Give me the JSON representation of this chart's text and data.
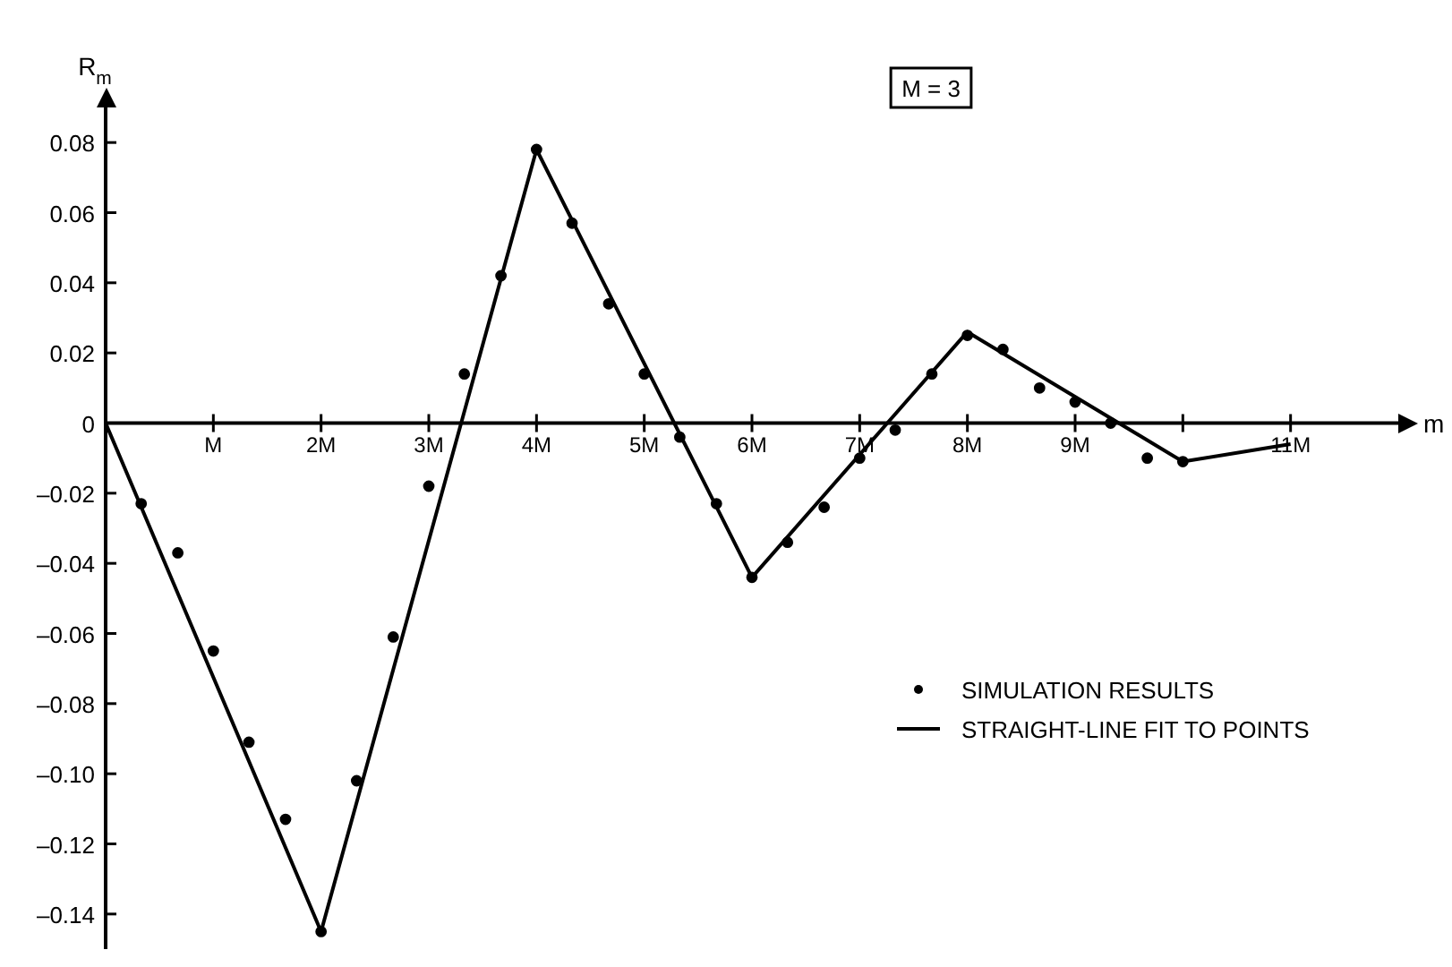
{
  "chart_data": {
    "type": "scatter",
    "xlabel": "m",
    "ylabel": "R$_{m}$",
    "annotations": [
      "M = 3"
    ],
    "xlim": [
      0,
      12
    ],
    "ylim": [
      -0.15,
      0.09
    ],
    "xticks": [
      {
        "value": 1,
        "label": "M"
      },
      {
        "value": 2,
        "label": "2M"
      },
      {
        "value": 3,
        "label": "3M"
      },
      {
        "value": 4,
        "label": "4M"
      },
      {
        "value": 5,
        "label": "5M"
      },
      {
        "value": 6,
        "label": "6M"
      },
      {
        "value": 7,
        "label": "7M"
      },
      {
        "value": 8,
        "label": "8M"
      },
      {
        "value": 9,
        "label": "9M"
      },
      {
        "value": 10,
        "label": null
      },
      {
        "value": 11,
        "label": "11M"
      }
    ],
    "yticks": [
      0.08,
      0.06,
      0.04,
      0.02,
      0,
      {
        "value": -0.02,
        "label": "–0.02"
      },
      {
        "value": -0.04,
        "label": "–0.04"
      },
      {
        "value": -0.06,
        "label": "–0.06"
      },
      {
        "value": -0.08,
        "label": "–0.08"
      },
      {
        "value": -0.1,
        "label": "–0.10"
      },
      {
        "value": -0.12,
        "label": "–0.12"
      },
      {
        "value": -0.14,
        "label": "–0.14"
      }
    ],
    "grid": false,
    "legend": "right",
    "series": [
      {
        "name": "SIMULATION RESULTS",
        "marker": "circle",
        "color": "#000000",
        "x": [
          0.33,
          0.67,
          1,
          1.33,
          1.67,
          2,
          2.33,
          2.67,
          3,
          3.33,
          3.67,
          4,
          4.33,
          4.67,
          5,
          5.33,
          5.67,
          6,
          6.33,
          6.67,
          7,
          7.33,
          7.67,
          8,
          8.33,
          8.67,
          9,
          9.33,
          9.67,
          10
        ],
        "values": [
          -0.023,
          -0.037,
          -0.065,
          -0.091,
          -0.113,
          -0.145,
          -0.102,
          -0.061,
          -0.018,
          0.014,
          0.042,
          0.078,
          0.057,
          0.034,
          0.014,
          -0.004,
          -0.023,
          -0.044,
          -0.034,
          -0.024,
          -0.01,
          -0.002,
          0.014,
          0.025,
          0.021,
          0.01,
          0.006,
          0,
          -0.01,
          -0.011
        ]
      },
      {
        "name": "STRAIGHT-LINE FIT TO POINTS",
        "type": "line",
        "marker": "none",
        "line_style": "solid",
        "color": "#000000",
        "x": [
          0,
          2,
          4,
          6,
          8,
          10,
          11
        ],
        "values": [
          0,
          -0.145,
          0.078,
          -0.044,
          0.026,
          -0.011,
          -0.006
        ]
      }
    ]
  }
}
